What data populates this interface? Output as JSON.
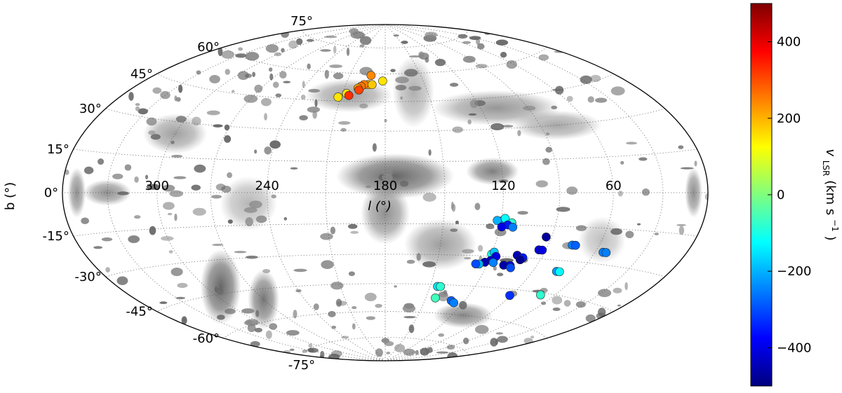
{
  "chart_data": {
    "type": "scatter",
    "projection": "hammer-aitoff",
    "xlabel": "l (°)",
    "ylabel": "b (°)",
    "x_range": [
      360,
      0
    ],
    "y_range": [
      -90,
      90
    ],
    "grid": true,
    "x_tick_labels": [
      "300",
      "240",
      "180",
      "120",
      "60"
    ],
    "y_tick_labels": [
      "75°",
      "60°",
      "45°",
      "30°",
      "15°",
      "0°",
      "-15°",
      "-30°",
      "-45°",
      "-60°",
      "-75°"
    ],
    "background": "grayscale H I column-density sky map",
    "colorbar": {
      "label": "v_LSR (km s⁻¹)",
      "label_main": "v",
      "label_sub": "LSR",
      "label_units": " (km s",
      "label_exp": "−1",
      "label_close": ")",
      "colormap": "jet",
      "range": [
        -500,
        500
      ],
      "tick_labels": [
        "400",
        "200",
        "0",
        "−200",
        "−400"
      ],
      "colors": [
        "#00007f",
        "#0000ff",
        "#007fff",
        "#00ffff",
        "#7fff7f",
        "#ffff00",
        "#ff7f00",
        "#ff0000",
        "#7f0000"
      ]
    },
    "series": [
      {
        "points": [
          {
            "l": 192,
            "b": 59,
            "v": 240
          },
          {
            "l": 193,
            "b": 54,
            "v": 200
          },
          {
            "l": 196,
            "b": 54,
            "v": 250
          },
          {
            "l": 190,
            "b": 54,
            "v": 180
          },
          {
            "l": 198,
            "b": 53,
            "v": 260
          },
          {
            "l": 200,
            "b": 52,
            "v": 220
          },
          {
            "l": 199,
            "b": 51,
            "v": 310
          },
          {
            "l": 182,
            "b": 56,
            "v": 150
          },
          {
            "l": 207,
            "b": 49,
            "v": 150
          },
          {
            "l": 212,
            "b": 47,
            "v": 150
          },
          {
            "l": 205,
            "b": 48,
            "v": 330
          },
          {
            "l": 114,
            "b": -14,
            "v": -80
          },
          {
            "l": 119,
            "b": -13,
            "v": -220
          },
          {
            "l": 118,
            "b": -12,
            "v": -120
          },
          {
            "l": 122,
            "b": -13,
            "v": -200
          },
          {
            "l": 116,
            "b": -15,
            "v": -350
          },
          {
            "l": 119,
            "b": -16,
            "v": -400
          },
          {
            "l": 113,
            "b": -16,
            "v": -250
          },
          {
            "l": 93,
            "b": -20,
            "v": -470
          },
          {
            "l": 76,
            "b": -23,
            "v": -250
          },
          {
            "l": 74,
            "b": -23,
            "v": -280
          },
          {
            "l": 94,
            "b": -26,
            "v": -400
          },
          {
            "l": 92,
            "b": -26,
            "v": -400
          },
          {
            "l": 55,
            "b": -25,
            "v": -250
          },
          {
            "l": 53,
            "b": -25,
            "v": -250
          },
          {
            "l": 120,
            "b": -29,
            "v": -100
          },
          {
            "l": 119,
            "b": -28,
            "v": -180
          },
          {
            "l": 117,
            "b": -30,
            "v": -400
          },
          {
            "l": 105,
            "b": -29,
            "v": -450
          },
          {
            "l": 101,
            "b": -30,
            "v": -350
          },
          {
            "l": 102,
            "b": -31,
            "v": -480
          },
          {
            "l": 119,
            "b": -32,
            "v": -420
          },
          {
            "l": 122,
            "b": -33,
            "v": -450
          },
          {
            "l": 117,
            "b": -33,
            "v": -250
          },
          {
            "l": 125,
            "b": -34,
            "v": -200
          },
          {
            "l": 127,
            "b": -34,
            "v": -300
          },
          {
            "l": 106,
            "b": -34,
            "v": -400
          },
          {
            "l": 110,
            "b": -34,
            "v": -460
          },
          {
            "l": 105,
            "b": -35,
            "v": -300
          },
          {
            "l": 75,
            "b": -35,
            "v": -220
          },
          {
            "l": 73,
            "b": -35,
            "v": -130
          },
          {
            "l": 145,
            "b": -46,
            "v": -150
          },
          {
            "l": 143,
            "b": -46,
            "v": -80
          },
          {
            "l": 143,
            "b": -52,
            "v": -60
          },
          {
            "l": 130,
            "b": -53,
            "v": -280
          },
          {
            "l": 127,
            "b": -54,
            "v": -250
          },
          {
            "l": 91,
            "b": -48,
            "v": -330
          },
          {
            "l": 70,
            "b": -46,
            "v": -80
          }
        ]
      }
    ]
  }
}
